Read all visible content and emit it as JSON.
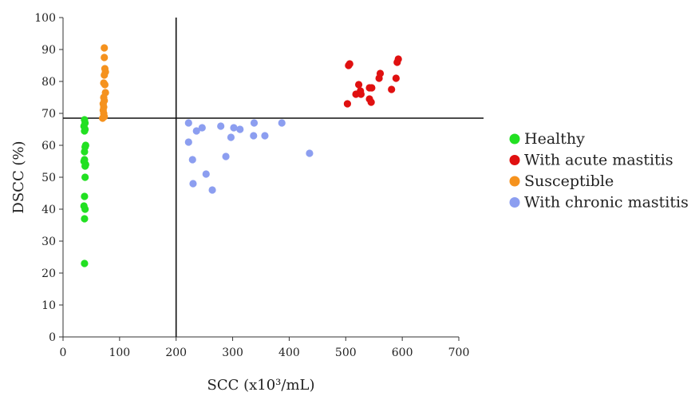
{
  "chart_data": {
    "type": "scatter",
    "xlabel": "SCC (x10³/mL)",
    "ylabel": "DSCC (%)",
    "xlim": [
      0,
      700
    ],
    "ylim": [
      0,
      100
    ],
    "xticks": [
      0,
      100,
      200,
      300,
      400,
      500,
      600,
      700
    ],
    "yticks": [
      0,
      10,
      20,
      30,
      40,
      50,
      60,
      70,
      80,
      90,
      100
    ],
    "grid": false,
    "legend_position": "right",
    "thresholds": {
      "x": 200,
      "y": 68.5
    },
    "series": [
      {
        "name": "Healthy",
        "color": "#22e022",
        "points": [
          [
            38,
            68
          ],
          [
            39,
            67
          ],
          [
            37,
            66
          ],
          [
            39,
            65
          ],
          [
            38,
            64.5
          ],
          [
            40,
            60
          ],
          [
            39,
            59.5
          ],
          [
            38,
            58
          ],
          [
            37,
            55
          ],
          [
            38,
            55.5
          ],
          [
            40,
            54
          ],
          [
            39,
            53.5
          ],
          [
            39,
            50
          ],
          [
            38,
            44
          ],
          [
            37,
            41
          ],
          [
            39,
            40
          ],
          [
            38,
            37
          ],
          [
            38,
            23
          ]
        ]
      },
      {
        "name": "With acute mastitis",
        "color": "#e01010",
        "points": [
          [
            507,
            85.5
          ],
          [
            505,
            85
          ],
          [
            593,
            87
          ],
          [
            591,
            86
          ],
          [
            561,
            82.5
          ],
          [
            559,
            81
          ],
          [
            589,
            81
          ],
          [
            523,
            79
          ],
          [
            546,
            78
          ],
          [
            542,
            78
          ],
          [
            581,
            77.5
          ],
          [
            526,
            77
          ],
          [
            518,
            76
          ],
          [
            527,
            76
          ],
          [
            542,
            74.5
          ],
          [
            545,
            73.5
          ],
          [
            503,
            73
          ]
        ]
      },
      {
        "name": "Susceptible",
        "color": "#f5921e",
        "points": [
          [
            73,
            90.5
          ],
          [
            73,
            87.5
          ],
          [
            74,
            84
          ],
          [
            75,
            83
          ],
          [
            73,
            82
          ],
          [
            72,
            79.5
          ],
          [
            74,
            79
          ],
          [
            75,
            76.5
          ],
          [
            72,
            75
          ],
          [
            73,
            74
          ],
          [
            71,
            73
          ],
          [
            72,
            72
          ],
          [
            71,
            71
          ],
          [
            72,
            70
          ],
          [
            73,
            69
          ],
          [
            70,
            68.5
          ]
        ]
      },
      {
        "name": "With chronic mastitis",
        "color": "#8c9ef0",
        "points": [
          [
            222,
            67
          ],
          [
            387,
            67
          ],
          [
            338,
            67
          ],
          [
            279,
            66
          ],
          [
            246,
            65.5
          ],
          [
            302,
            65.5
          ],
          [
            313,
            65
          ],
          [
            236,
            64.5
          ],
          [
            337,
            63
          ],
          [
            357,
            63
          ],
          [
            297,
            62.5
          ],
          [
            222,
            61
          ],
          [
            436,
            57.5
          ],
          [
            288,
            56.5
          ],
          [
            229,
            55.5
          ],
          [
            253,
            51
          ],
          [
            230,
            48
          ],
          [
            264,
            46
          ]
        ]
      }
    ]
  }
}
